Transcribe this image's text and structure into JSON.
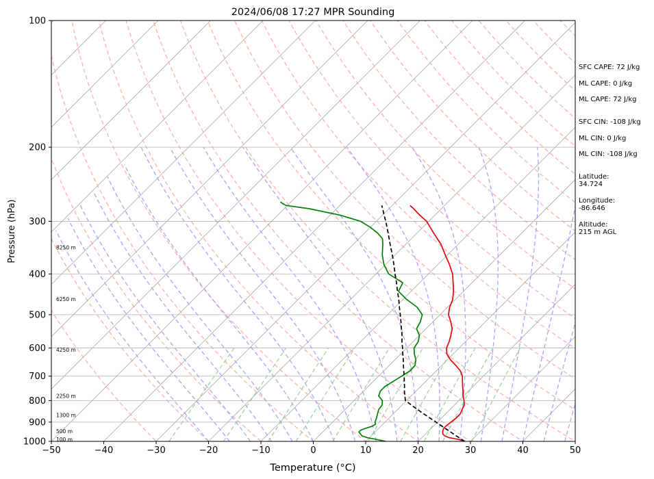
{
  "chart_data": {
    "type": "skew-t",
    "title": "2024/06/08 17:27 MPR Sounding",
    "xlabel": "Temperature (°C)",
    "ylabel": "Pressure (hPa)",
    "xlim": [
      -50,
      50
    ],
    "ylim": [
      1000,
      100
    ],
    "y_scale": "log",
    "grid": true,
    "x_ticks": [
      -50,
      -40,
      -30,
      -20,
      -10,
      0,
      10,
      20,
      30,
      40,
      50
    ],
    "y_ticks": [
      100,
      200,
      300,
      400,
      500,
      600,
      700,
      800,
      900,
      1000
    ],
    "height_labels": [
      {
        "label": "100 m",
        "pressure": 988
      },
      {
        "label": "500 m",
        "pressure": 945
      },
      {
        "label": "1300 m",
        "pressure": 866
      },
      {
        "label": "2250 m",
        "pressure": 780
      },
      {
        "label": "4250 m",
        "pressure": 606
      },
      {
        "label": "6250 m",
        "pressure": 459
      },
      {
        "label": "8250 m",
        "pressure": 346
      }
    ],
    "series": [
      {
        "key": "temperature",
        "color": "#e8000b",
        "points": [
          [
            1000,
            28.9
          ],
          [
            990,
            27.5
          ],
          [
            980,
            25.2
          ],
          [
            970,
            24.0
          ],
          [
            960,
            23.3
          ],
          [
            950,
            22.9
          ],
          [
            940,
            22.6
          ],
          [
            930,
            22.4
          ],
          [
            920,
            22.4
          ],
          [
            900,
            22.6
          ],
          [
            880,
            22.8
          ],
          [
            860,
            22.8
          ],
          [
            840,
            22.3
          ],
          [
            820,
            21.9
          ],
          [
            800,
            21.0
          ],
          [
            780,
            19.9
          ],
          [
            760,
            19.0
          ],
          [
            740,
            18.0
          ],
          [
            720,
            17.0
          ],
          [
            700,
            16.0
          ],
          [
            680,
            14.6
          ],
          [
            660,
            12.7
          ],
          [
            640,
            10.6
          ],
          [
            620,
            8.8
          ],
          [
            600,
            7.6
          ],
          [
            580,
            6.9
          ],
          [
            560,
            6.0
          ],
          [
            540,
            5.0
          ],
          [
            520,
            3.4
          ],
          [
            500,
            1.6
          ],
          [
            480,
            0.4
          ],
          [
            460,
            -0.5
          ],
          [
            440,
            -1.9
          ],
          [
            420,
            -3.6
          ],
          [
            400,
            -5.4
          ],
          [
            380,
            -7.8
          ],
          [
            360,
            -10.5
          ],
          [
            340,
            -13.3
          ],
          [
            320,
            -16.8
          ],
          [
            300,
            -20.4
          ],
          [
            290,
            -22.9
          ],
          [
            280,
            -25.3
          ],
          [
            275,
            -26.6
          ]
        ]
      },
      {
        "key": "dewpoint",
        "color": "#008000",
        "points": [
          [
            1000,
            13.8
          ],
          [
            990,
            11.8
          ],
          [
            980,
            9.6
          ],
          [
            970,
            8.2
          ],
          [
            960,
            7.6
          ],
          [
            950,
            6.9
          ],
          [
            940,
            6.9
          ],
          [
            930,
            7.6
          ],
          [
            920,
            8.4
          ],
          [
            910,
            8.6
          ],
          [
            900,
            8.1
          ],
          [
            880,
            7.6
          ],
          [
            860,
            7.0
          ],
          [
            840,
            6.4
          ],
          [
            820,
            6.2
          ],
          [
            800,
            5.4
          ],
          [
            780,
            3.8
          ],
          [
            760,
            3.2
          ],
          [
            740,
            3.2
          ],
          [
            720,
            3.8
          ],
          [
            700,
            4.4
          ],
          [
            680,
            5.0
          ],
          [
            660,
            4.9
          ],
          [
            640,
            4.0
          ],
          [
            620,
            2.6
          ],
          [
            600,
            1.4
          ],
          [
            580,
            1.0
          ],
          [
            560,
            0.0
          ],
          [
            540,
            -1.8
          ],
          [
            520,
            -2.4
          ],
          [
            500,
            -3.4
          ],
          [
            480,
            -5.8
          ],
          [
            460,
            -9.3
          ],
          [
            440,
            -12.4
          ],
          [
            420,
            -13.2
          ],
          [
            400,
            -17.6
          ],
          [
            380,
            -20.3
          ],
          [
            360,
            -22.5
          ],
          [
            340,
            -24.4
          ],
          [
            330,
            -25.5
          ],
          [
            320,
            -27.5
          ],
          [
            310,
            -30.0
          ],
          [
            300,
            -33.0
          ],
          [
            290,
            -38.1
          ],
          [
            280,
            -45.2
          ],
          [
            275,
            -50.3
          ],
          [
            270,
            -52.0
          ]
        ]
      },
      {
        "key": "parcel",
        "color": "#000000",
        "dashed": true,
        "points": [
          [
            1000,
            28.9
          ],
          [
            970,
            26.2
          ],
          [
            940,
            23.5
          ],
          [
            910,
            20.7
          ],
          [
            880,
            17.8
          ],
          [
            850,
            14.8
          ],
          [
            820,
            11.8
          ],
          [
            800,
            9.8
          ],
          [
            780,
            8.8
          ],
          [
            760,
            7.8
          ],
          [
            740,
            6.9
          ],
          [
            720,
            5.9
          ],
          [
            700,
            4.9
          ],
          [
            680,
            3.8
          ],
          [
            660,
            2.7
          ],
          [
            640,
            1.6
          ],
          [
            620,
            0.4
          ],
          [
            600,
            -0.8
          ],
          [
            580,
            -2.1
          ],
          [
            560,
            -3.3
          ],
          [
            540,
            -4.7
          ],
          [
            520,
            -6.1
          ],
          [
            500,
            -7.6
          ],
          [
            480,
            -9.2
          ],
          [
            460,
            -10.8
          ],
          [
            440,
            -12.6
          ],
          [
            420,
            -14.4
          ],
          [
            400,
            -16.4
          ],
          [
            380,
            -18.4
          ],
          [
            360,
            -20.6
          ],
          [
            340,
            -23.0
          ],
          [
            320,
            -25.5
          ],
          [
            300,
            -28.2
          ],
          [
            290,
            -29.7
          ],
          [
            280,
            -31.2
          ],
          [
            275,
            -32.0
          ]
        ]
      }
    ],
    "background_lines": {
      "isotherm_color": "#aaaaaa",
      "dry_adiabat_color": "#ff9a9a",
      "moist_adiabat_color": "#9a9aff",
      "mixing_ratio_color": "#8fc98f"
    },
    "info": {
      "sfc_cape": "SFC CAPE: 72 J/kg",
      "ml_cape_1": "ML CAPE: 0 J/kg",
      "ml_cape_2": "ML CAPE: 72 J/kg",
      "sfc_cin": "SFC CIN: -108 J/kg",
      "ml_cin_1": "ML CIN: 0 J/kg",
      "ml_cin_2": "ML CIN: -108 J/kg",
      "latitude_label": "Latitude:",
      "latitude": "34.724",
      "longitude_label": "Longitude:",
      "longitude": "-86.646",
      "altitude_label": "Altitude:",
      "altitude": "215 m AGL"
    }
  }
}
